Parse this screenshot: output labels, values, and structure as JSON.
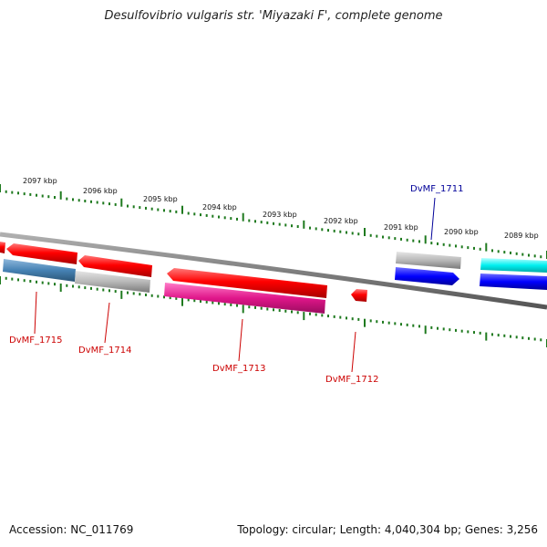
{
  "title": "Desulfovibrio vulgaris str. 'Miyazaki F', complete genome",
  "colors": {
    "backbone": "#808080",
    "tick": "#1f7a1f",
    "red": "#ff0000",
    "steel_blue": "#4682b4",
    "grey": "#b4b4b4",
    "deep_pink": "#e0168a",
    "blue": "#0000ff",
    "cyan": "#00ffff",
    "label_red": "#cc0000",
    "label_blue": "#000099"
  },
  "scale_labels": [
    "2097 kbp",
    "2096 kbp",
    "2095 kbp",
    "2094 kbp",
    "2093 kbp",
    "2092 kbp",
    "2091 kbp",
    "2090 kbp",
    "2089 kbp"
  ],
  "gene_labels": [
    "DvMF_1715",
    "DvMF_1714",
    "DvMF_1713",
    "DvMF_1712",
    "DvMF_1711"
  ],
  "footer": {
    "accession": "Accession: NC_011769",
    "topology": "Topology: circular; Length: 4,040,304 bp; Genes: 3,256"
  }
}
